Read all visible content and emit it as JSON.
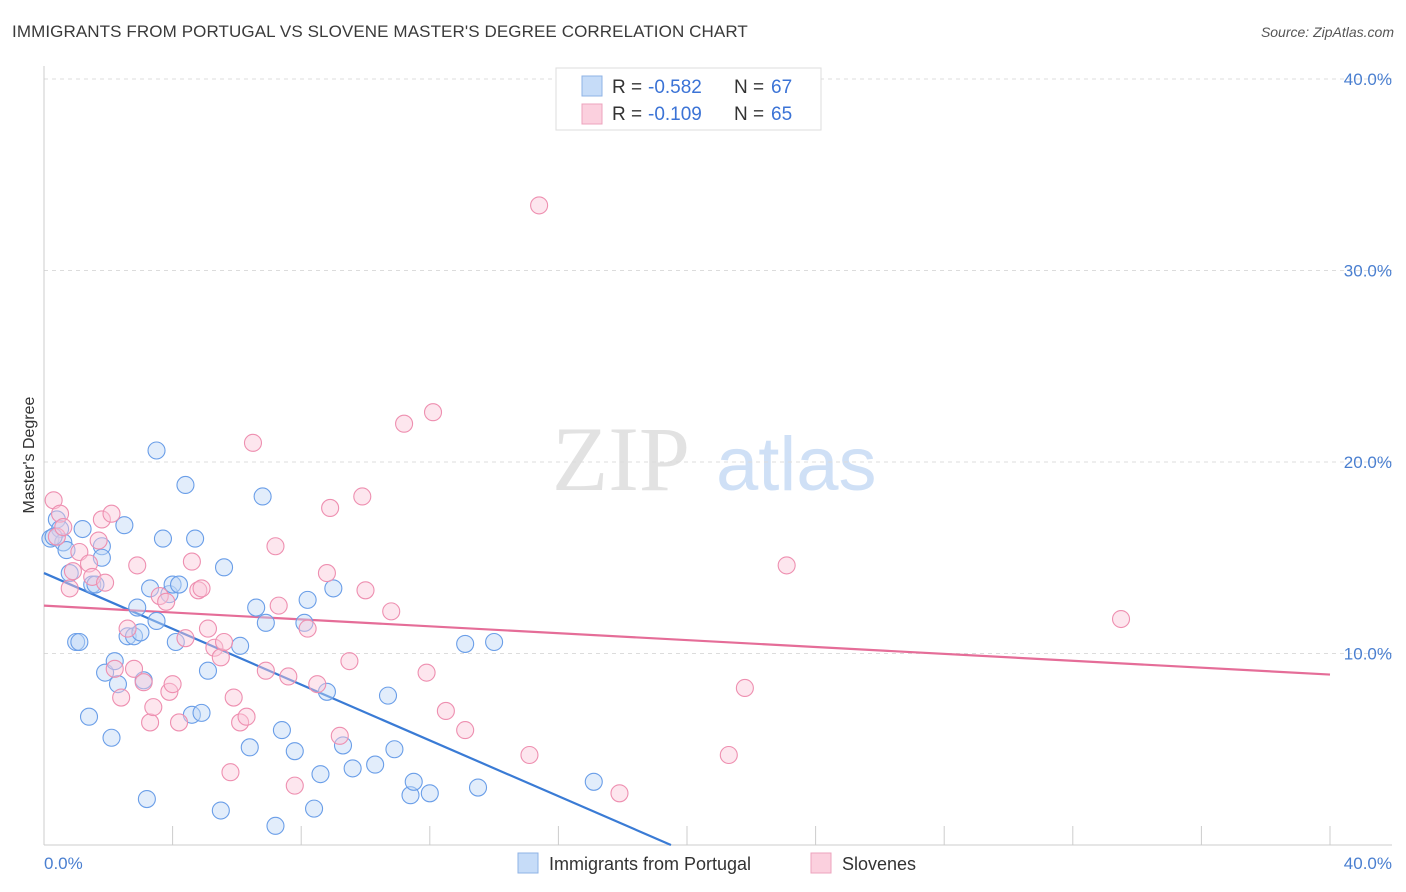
{
  "title": "IMMIGRANTS FROM PORTUGAL VS SLOVENE MASTER'S DEGREE CORRELATION CHART",
  "source": "Source: ZipAtlas.com",
  "watermark": {
    "zip": "ZIP",
    "atlas": "atlas"
  },
  "legend": {
    "r_label": "R =",
    "n_label": "N =",
    "series": [
      {
        "r": "-0.582",
        "n": "67"
      },
      {
        "r": "-0.109",
        "n": "65"
      }
    ]
  },
  "chart_data": {
    "type": "scatter",
    "title": "IMMIGRANTS FROM PORTUGAL VS SLOVENE MASTER'S DEGREE CORRELATION CHART",
    "xlabel": "",
    "ylabel": "Master's Degree",
    "xlim": [
      0,
      40
    ],
    "ylim": [
      0,
      42
    ],
    "x_tick_labels": [
      "0.0%",
      "40.0%"
    ],
    "y_ticks": [
      10,
      20,
      30,
      40
    ],
    "y_tick_labels": [
      "10.0%",
      "20.0%",
      "30.0%",
      "40.0%"
    ],
    "colors": {
      "blue": "#6a9ee8",
      "pink": "#ee8fb0",
      "blue_line": "#3a7bd5",
      "pink_line": "#e56d98",
      "tick": "#4a7fd0"
    },
    "series": [
      {
        "name": "Immigrants from Portugal",
        "trend": {
          "x": [
            0,
            19.5
          ],
          "y": [
            14.2,
            0
          ]
        },
        "points": [
          [
            0.2,
            16.0
          ],
          [
            0.4,
            17.0
          ],
          [
            0.5,
            16.5
          ],
          [
            0.6,
            15.8
          ],
          [
            0.7,
            15.4
          ],
          [
            0.8,
            14.2
          ],
          [
            1.0,
            10.6
          ],
          [
            1.1,
            10.6
          ],
          [
            1.2,
            16.5
          ],
          [
            1.4,
            6.7
          ],
          [
            1.5,
            13.6
          ],
          [
            1.6,
            13.6
          ],
          [
            1.8,
            15.6
          ],
          [
            1.8,
            15.0
          ],
          [
            1.9,
            9.0
          ],
          [
            2.1,
            5.6
          ],
          [
            2.2,
            9.6
          ],
          [
            2.3,
            8.4
          ],
          [
            2.5,
            16.7
          ],
          [
            2.6,
            10.9
          ],
          [
            2.8,
            10.9
          ],
          [
            2.9,
            12.4
          ],
          [
            3.0,
            11.1
          ],
          [
            3.1,
            8.6
          ],
          [
            3.2,
            2.4
          ],
          [
            3.3,
            13.4
          ],
          [
            3.5,
            11.7
          ],
          [
            3.5,
            20.6
          ],
          [
            3.7,
            16.0
          ],
          [
            3.9,
            13.1
          ],
          [
            4.0,
            13.6
          ],
          [
            4.1,
            10.6
          ],
          [
            4.2,
            13.6
          ],
          [
            4.4,
            18.8
          ],
          [
            4.6,
            6.8
          ],
          [
            4.7,
            16.0
          ],
          [
            4.9,
            6.9
          ],
          [
            5.1,
            9.1
          ],
          [
            5.5,
            1.8
          ],
          [
            5.6,
            14.5
          ],
          [
            6.1,
            10.4
          ],
          [
            6.4,
            5.1
          ],
          [
            6.6,
            12.4
          ],
          [
            6.8,
            18.2
          ],
          [
            6.9,
            11.6
          ],
          [
            7.2,
            1.0
          ],
          [
            7.4,
            6.0
          ],
          [
            7.8,
            4.9
          ],
          [
            8.1,
            11.6
          ],
          [
            8.2,
            12.8
          ],
          [
            8.4,
            1.9
          ],
          [
            8.6,
            3.7
          ],
          [
            8.8,
            8.0
          ],
          [
            9.0,
            13.4
          ],
          [
            9.3,
            5.2
          ],
          [
            9.6,
            4.0
          ],
          [
            10.3,
            4.2
          ],
          [
            10.7,
            7.8
          ],
          [
            10.9,
            5.0
          ],
          [
            11.4,
            2.6
          ],
          [
            11.5,
            3.3
          ],
          [
            12.0,
            2.7
          ],
          [
            13.1,
            10.5
          ],
          [
            13.5,
            3.0
          ],
          [
            14.0,
            10.6
          ],
          [
            17.1,
            3.3
          ],
          [
            0.3,
            16.1
          ]
        ]
      },
      {
        "name": "Slovenes",
        "trend": {
          "x": [
            0,
            40
          ],
          "y": [
            12.5,
            8.9
          ]
        },
        "points": [
          [
            0.3,
            18.0
          ],
          [
            0.4,
            16.1
          ],
          [
            0.5,
            17.3
          ],
          [
            0.6,
            16.6
          ],
          [
            0.8,
            13.4
          ],
          [
            0.9,
            14.3
          ],
          [
            1.1,
            15.3
          ],
          [
            1.4,
            14.7
          ],
          [
            1.5,
            14.0
          ],
          [
            1.7,
            15.9
          ],
          [
            1.8,
            17.0
          ],
          [
            1.9,
            13.7
          ],
          [
            2.1,
            17.3
          ],
          [
            2.2,
            9.2
          ],
          [
            2.4,
            7.7
          ],
          [
            2.6,
            11.3
          ],
          [
            2.8,
            9.2
          ],
          [
            2.9,
            14.6
          ],
          [
            3.1,
            8.5
          ],
          [
            3.3,
            6.4
          ],
          [
            3.4,
            7.2
          ],
          [
            3.6,
            13.0
          ],
          [
            3.8,
            12.7
          ],
          [
            3.9,
            8.0
          ],
          [
            4.0,
            8.4
          ],
          [
            4.2,
            6.4
          ],
          [
            4.4,
            10.8
          ],
          [
            4.6,
            14.8
          ],
          [
            4.8,
            13.3
          ],
          [
            4.9,
            13.4
          ],
          [
            5.1,
            11.3
          ],
          [
            5.3,
            10.3
          ],
          [
            5.5,
            9.8
          ],
          [
            5.6,
            10.6
          ],
          [
            5.8,
            3.8
          ],
          [
            5.9,
            7.7
          ],
          [
            6.1,
            6.4
          ],
          [
            6.3,
            6.7
          ],
          [
            6.5,
            21.0
          ],
          [
            6.9,
            9.1
          ],
          [
            7.2,
            15.6
          ],
          [
            7.3,
            12.5
          ],
          [
            7.6,
            8.8
          ],
          [
            7.8,
            3.1
          ],
          [
            8.2,
            11.3
          ],
          [
            8.5,
            8.4
          ],
          [
            8.8,
            14.2
          ],
          [
            8.9,
            17.6
          ],
          [
            9.2,
            5.7
          ],
          [
            9.5,
            9.6
          ],
          [
            9.9,
            18.2
          ],
          [
            10.0,
            13.3
          ],
          [
            10.8,
            12.2
          ],
          [
            11.2,
            22.0
          ],
          [
            11.9,
            9.0
          ],
          [
            12.1,
            22.6
          ],
          [
            12.5,
            7.0
          ],
          [
            13.1,
            6.0
          ],
          [
            15.1,
            4.7
          ],
          [
            15.4,
            33.4
          ],
          [
            17.9,
            2.7
          ],
          [
            21.3,
            4.7
          ],
          [
            21.8,
            8.2
          ],
          [
            23.1,
            14.6
          ],
          [
            33.5,
            11.8
          ]
        ]
      }
    ]
  }
}
